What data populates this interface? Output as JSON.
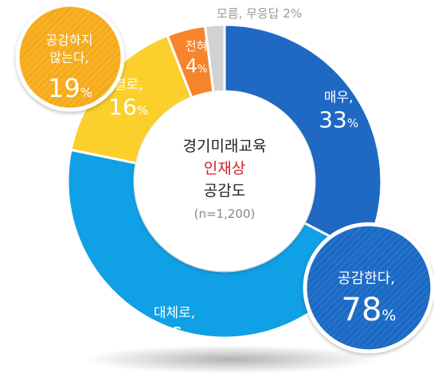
{
  "chart_data": {
    "type": "pie",
    "variant": "donut",
    "title_lines": [
      "경기미래교육",
      "인재상",
      "공감도"
    ],
    "sample_label": "(n=1,200)",
    "unit": "%",
    "slices": [
      {
        "label": "매우,",
        "value": 33,
        "color": "#1f69c3"
      },
      {
        "label": "대체로,",
        "value": 46,
        "color": "#10a0e6"
      },
      {
        "label": "별로,",
        "value": 16,
        "color": "#fcd02c"
      },
      {
        "label": "전혀",
        "value": 4,
        "color": "#f7842b"
      },
      {
        "label": "모름, 무응답",
        "value": 2,
        "color": "#d2d2d2"
      }
    ],
    "callouts": [
      {
        "label": "공감한다,",
        "value": 78,
        "color": "#1f69c3"
      },
      {
        "label_lines": [
          "공감하지",
          "않는다,"
        ],
        "value": 19,
        "color": "#f5aa1c"
      }
    ]
  },
  "colors": {
    "title_highlight": "#d0202a",
    "title_text": "#222222",
    "sample_text": "#888888",
    "outside_label_text": "#999999"
  }
}
